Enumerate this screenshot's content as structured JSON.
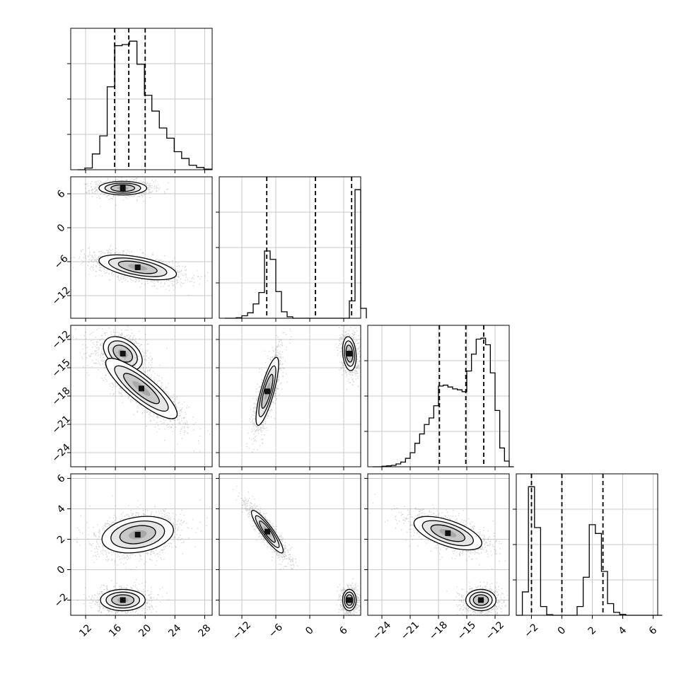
{
  "chart_data": {
    "type": "corner",
    "colors": {
      "line": "#000000",
      "grid": "#c8c8c8",
      "scatter": "#555555",
      "fill_light": "#ffffff"
    },
    "grid": true,
    "quantile_lines": "dashed",
    "params": [
      {
        "range": [
          10,
          29
        ],
        "ticks": [
          12,
          16,
          20,
          24,
          28
        ]
      },
      {
        "range": [
          -16,
          9
        ],
        "ticks": [
          -12,
          -6,
          0,
          6
        ]
      },
      {
        "range": [
          -25.5,
          -10.5
        ],
        "ticks": [
          -24,
          -21,
          -18,
          -15,
          -12
        ]
      },
      {
        "range": [
          -3,
          6.3
        ],
        "ticks": [
          -2,
          0,
          2,
          4,
          6
        ]
      }
    ],
    "histograms": [
      {
        "param": 0,
        "bins": [
          10.9,
          11.9,
          12.9,
          13.9,
          14.9,
          15.9,
          16.9,
          17.9,
          18.9,
          19.9,
          20.9,
          21.9,
          22.9,
          23.9,
          24.9,
          25.9,
          26.9,
          27.9
        ],
        "counts": [
          0,
          3,
          28,
          60,
          147,
          220,
          222,
          228,
          187,
          132,
          104,
          74,
          56,
          32,
          20,
          8,
          4,
          1
        ],
        "quantiles": [
          15.9,
          17.8,
          20.0
        ]
      },
      {
        "param": 1,
        "bins": [
          -15,
          -14,
          -13,
          -12,
          -11,
          -10,
          -9,
          -8,
          -7,
          -6,
          -5,
          -4,
          -3,
          -2,
          -1,
          0,
          1,
          2,
          3,
          4,
          5,
          6,
          7,
          8,
          9
        ],
        "counts": [
          0,
          0,
          2,
          10,
          22,
          58,
          104,
          272,
          238,
          108,
          26,
          6,
          0,
          0,
          0,
          0,
          0,
          0,
          0,
          0,
          0,
          0,
          70,
          520,
          40
        ],
        "quantiles": [
          -7.6,
          1.0,
          7.4
        ]
      },
      {
        "param": 2,
        "bins": [
          -25,
          -24.5,
          -24,
          -23.5,
          -23,
          -22.5,
          -22,
          -21.5,
          -21,
          -20.5,
          -20,
          -19.5,
          -19,
          -18.5,
          -18,
          -17.5,
          -17,
          -16.5,
          -16,
          -15.5,
          -15,
          -14.5,
          -14,
          -13.5,
          -13,
          -12.5,
          -12,
          -11.5,
          -11,
          -10.5
        ],
        "counts": [
          0,
          0,
          1,
          2,
          3,
          6,
          10,
          18,
          30,
          50,
          70,
          90,
          104,
          130,
          172,
          174,
          170,
          166,
          164,
          160,
          204,
          240,
          272,
          274,
          260,
          200,
          120,
          40,
          12,
          0
        ],
        "quantiles": [
          -17.9,
          -15.1,
          -13.2
        ]
      },
      {
        "param": 3,
        "bins": [
          -3,
          -2.6,
          -2.2,
          -1.8,
          -1.4,
          -1.0,
          -0.6,
          -0.2,
          0.2,
          0.6,
          1.0,
          1.4,
          1.8,
          2.2,
          2.6,
          3.0,
          3.4,
          3.8,
          4.2,
          4.6,
          5.0,
          5.4,
          5.8,
          6.2
        ],
        "counts": [
          0,
          80,
          440,
          300,
          30,
          2,
          0,
          0,
          0,
          0,
          30,
          130,
          310,
          280,
          150,
          40,
          10,
          3,
          0,
          0,
          0,
          0,
          0
        ],
        "quantiles": [
          -2.0,
          0.0,
          2.7
        ]
      }
    ],
    "pairs": [
      {
        "x_param": 0,
        "y_param": 1,
        "clusters": [
          {
            "mean": [
              17.0,
              7.0
            ],
            "sd": [
              1.6,
              0.6
            ],
            "rho": 0.0,
            "n": 900
          },
          {
            "mean": [
              19.0,
              -7.0
            ],
            "sd": [
              2.6,
              1.1
            ],
            "rho": -0.55,
            "n": 1300
          }
        ]
      },
      {
        "x_param": 0,
        "y_param": 2,
        "clusters": [
          {
            "mean": [
              17.0,
              -13.5
            ],
            "sd": [
              1.3,
              0.9
            ],
            "rho": -0.4,
            "n": 900
          },
          {
            "mean": [
              19.5,
              -17.2
            ],
            "sd": [
              2.4,
              1.6
            ],
            "rho": -0.85,
            "n": 1300
          }
        ]
      },
      {
        "x_param": 1,
        "y_param": 2,
        "clusters": [
          {
            "mean": [
              7.0,
              -13.5
            ],
            "sd": [
              0.6,
              0.9
            ],
            "rho": -0.2,
            "n": 900
          },
          {
            "mean": [
              -7.5,
              -17.5
            ],
            "sd": [
              1.0,
              1.8
            ],
            "rho": 0.8,
            "n": 1300
          }
        ]
      },
      {
        "x_param": 0,
        "y_param": 3,
        "clusters": [
          {
            "mean": [
              17.0,
              -2.0
            ],
            "sd": [
              1.5,
              0.35
            ],
            "rho": 0.0,
            "n": 900
          },
          {
            "mean": [
              19.0,
              2.3
            ],
            "sd": [
              2.4,
              0.6
            ],
            "rho": 0.25,
            "n": 1300
          }
        ]
      },
      {
        "x_param": 1,
        "y_param": 3,
        "clusters": [
          {
            "mean": [
              7.0,
              -2.0
            ],
            "sd": [
              0.6,
              0.35
            ],
            "rho": 0.0,
            "n": 900
          },
          {
            "mean": [
              -7.5,
              2.5
            ],
            "sd": [
              1.4,
              0.7
            ],
            "rho": -0.9,
            "n": 1300
          }
        ]
      },
      {
        "x_param": 2,
        "y_param": 3,
        "clusters": [
          {
            "mean": [
              -13.5,
              -2.0
            ],
            "sd": [
              0.8,
              0.35
            ],
            "rho": 0.0,
            "n": 900
          },
          {
            "mean": [
              -17.0,
              2.4
            ],
            "sd": [
              1.8,
              0.55
            ],
            "rho": -0.6,
            "n": 1300
          }
        ]
      }
    ]
  }
}
